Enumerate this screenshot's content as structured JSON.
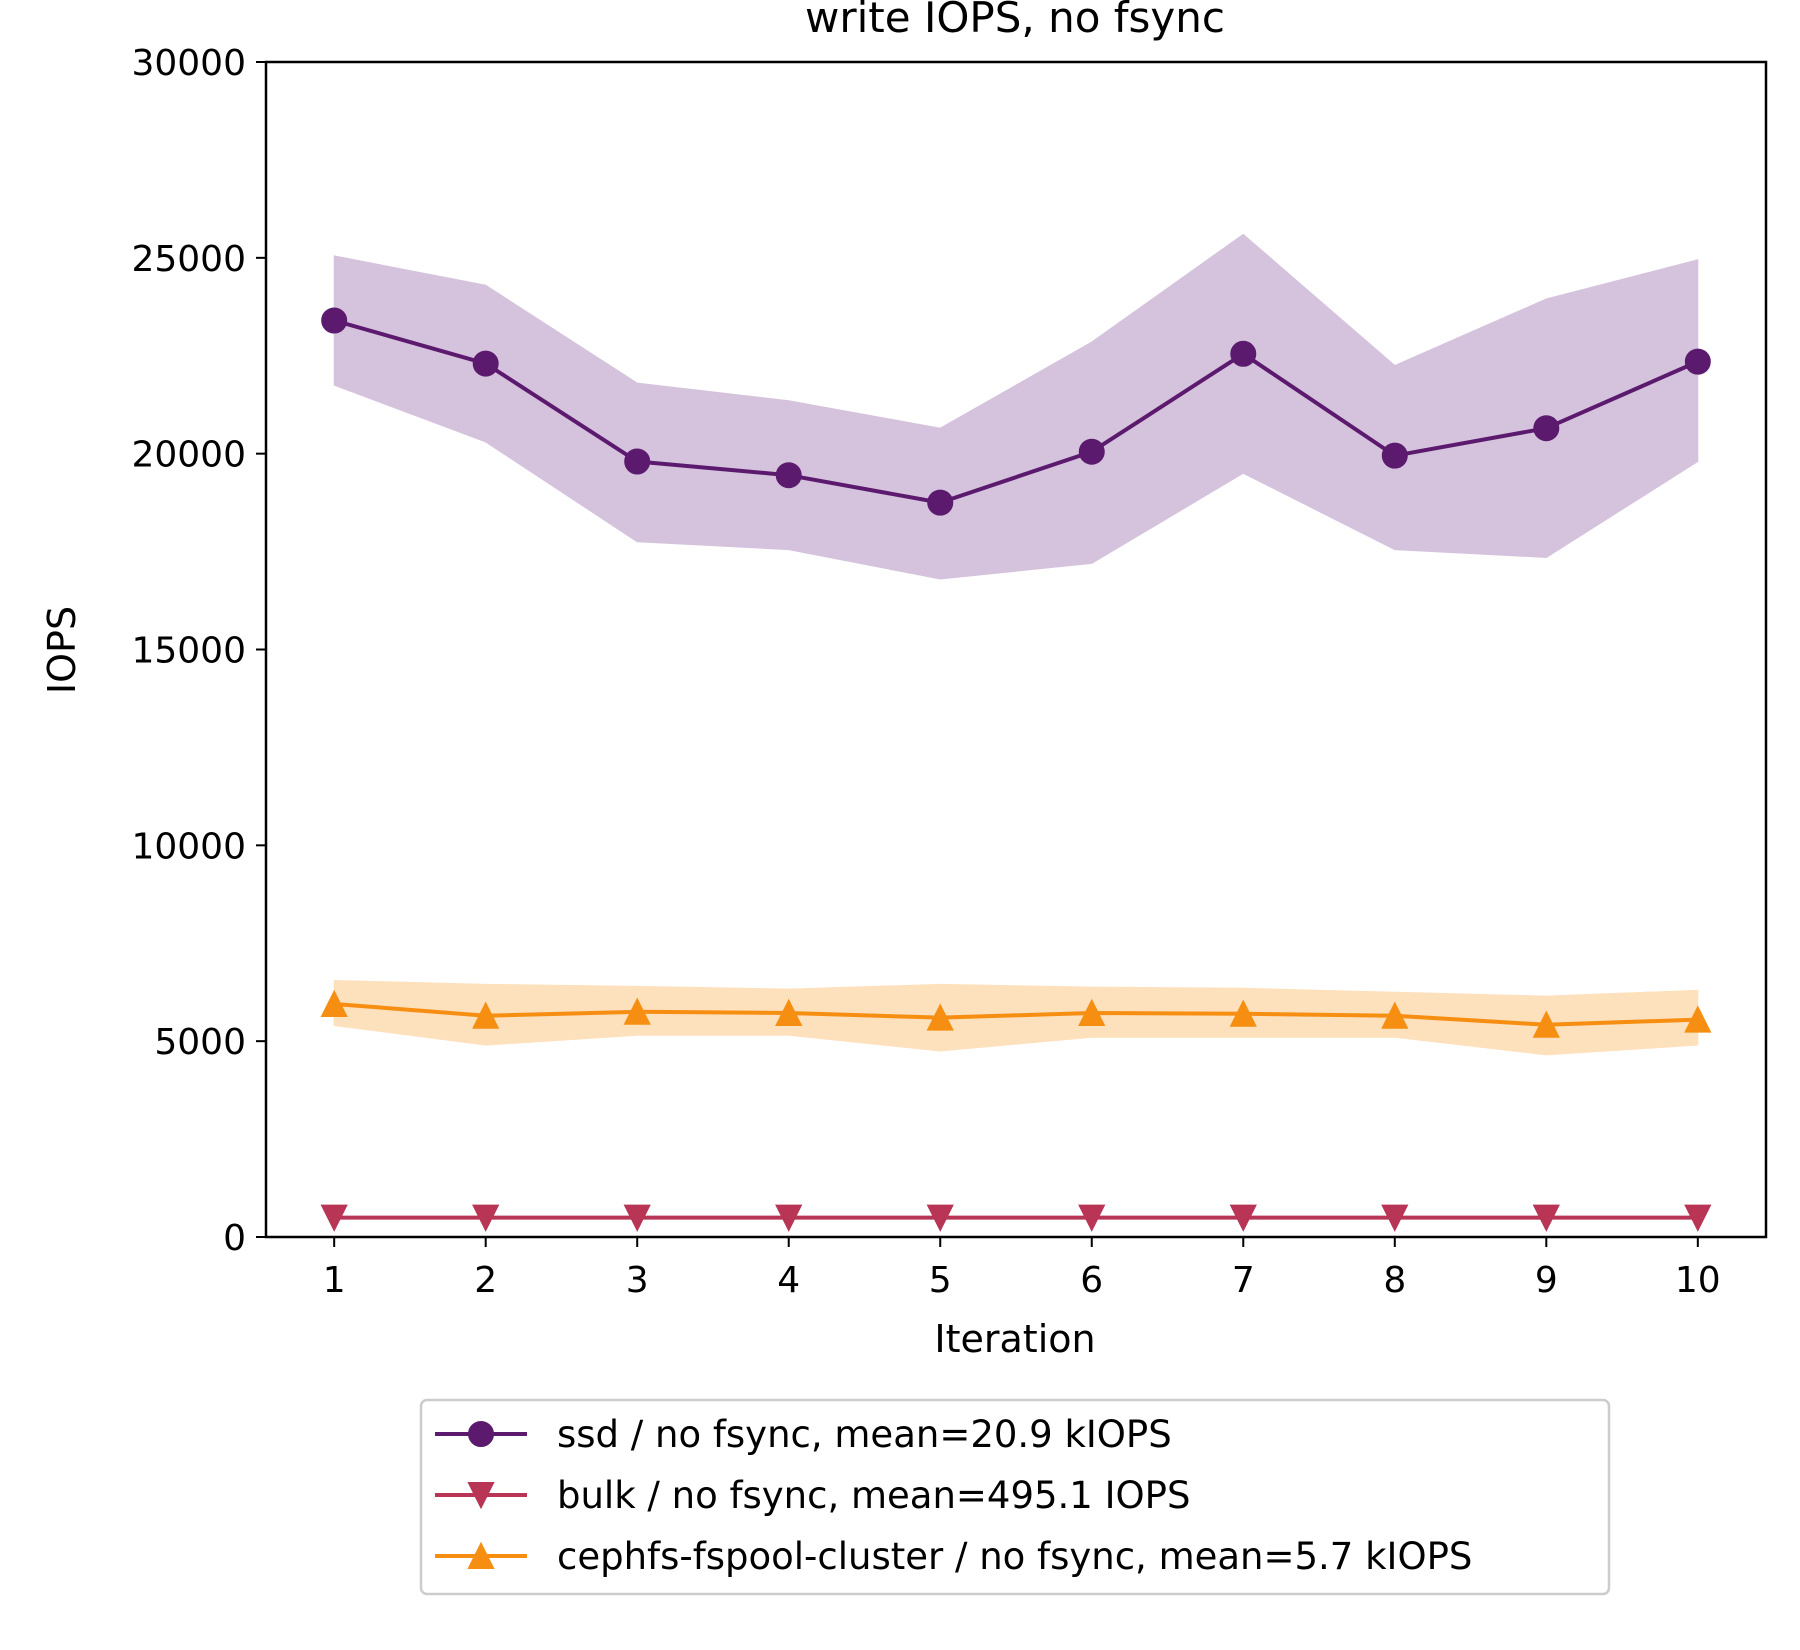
{
  "chart_data": {
    "type": "line",
    "title": "write IOPS, no fsync",
    "xlabel": "Iteration",
    "ylabel": "IOPS",
    "x": [
      1,
      2,
      3,
      4,
      5,
      6,
      7,
      8,
      9,
      10
    ],
    "xticks": [
      "1",
      "2",
      "3",
      "4",
      "5",
      "6",
      "7",
      "8",
      "9",
      "10"
    ],
    "yticks": [
      "0",
      "5000",
      "10000",
      "15000",
      "20000",
      "25000",
      "30000"
    ],
    "ylim": [
      0,
      30000
    ],
    "xlim": [
      0.55,
      10.45
    ],
    "grid": false,
    "legend_position": "below-center",
    "series": [
      {
        "name": "ssd / no fsync, mean=20.9 kIOPS",
        "color": "#5c1a6e",
        "band_color": "#d5c3dd",
        "marker": "circle",
        "values": [
          23400,
          22300,
          19800,
          19450,
          18750,
          20050,
          22550,
          19950,
          20650,
          22350
        ],
        "band_low": [
          21750,
          20300,
          17750,
          17550,
          16800,
          17200,
          19500,
          17550,
          17350,
          19800
        ],
        "band_high": [
          25050,
          24300,
          21800,
          21350,
          20650,
          22850,
          25600,
          22250,
          23950,
          24950
        ]
      },
      {
        "name": "bulk / no fsync, mean=495.1 IOPS",
        "color": "#b83556",
        "band_color": "#f2ccd6",
        "marker": "triangle-down",
        "values": [
          495,
          495,
          495,
          495,
          495,
          495,
          495,
          495,
          495,
          495
        ],
        "band_low": [
          470,
          470,
          470,
          470,
          470,
          470,
          470,
          470,
          470,
          470
        ],
        "band_high": [
          520,
          520,
          520,
          520,
          520,
          520,
          520,
          520,
          520,
          520
        ]
      },
      {
        "name": "cephfs-fspool-cluster / no fsync, mean=5.7 kIOPS",
        "color": "#f68e12",
        "band_color": "#fde0bc",
        "marker": "triangle-up",
        "values": [
          5950,
          5650,
          5750,
          5720,
          5600,
          5720,
          5700,
          5650,
          5420,
          5550
        ],
        "band_low": [
          5400,
          4900,
          5150,
          5150,
          4750,
          5100,
          5100,
          5100,
          4650,
          4900
        ],
        "band_high": [
          6550,
          6450,
          6400,
          6330,
          6450,
          6380,
          6350,
          6250,
          6150,
          6300
        ]
      }
    ]
  }
}
